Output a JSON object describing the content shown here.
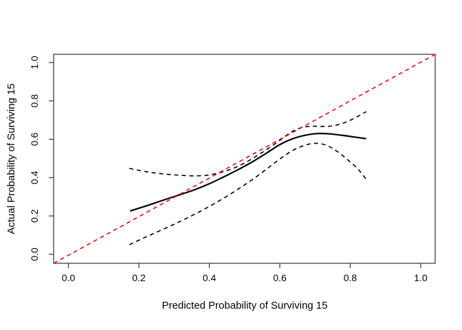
{
  "figure": {
    "background": "#ffffff",
    "box_color": "#333333",
    "text_color": "#000000"
  },
  "chart_data": {
    "type": "line",
    "title": "",
    "xlabel": "Predicted Probability of Surviving 15",
    "ylabel": "Actual Probability of Surviving 15",
    "xlim": [
      -0.042,
      1.041
    ],
    "ylim": [
      -0.047,
      1.043
    ],
    "grid": false,
    "legend": "none",
    "xticks": {
      "values": [
        0,
        0.2,
        0.4,
        0.6,
        0.8,
        1.0
      ],
      "labels": [
        "0.0",
        "0.2",
        "0.4",
        "0.6",
        "0.8",
        "1.0"
      ]
    },
    "yticks": {
      "values": [
        0,
        0.2,
        0.4,
        0.6,
        0.8,
        1.0
      ],
      "labels": [
        "0.0",
        "0.2",
        "0.4",
        "0.6",
        "0.8",
        "1.0"
      ]
    },
    "series": [
      {
        "name": "ideal-line",
        "style": "dashed",
        "color": "#ff0000",
        "width": 1.6,
        "smooth": false,
        "points": [
          [
            -0.042,
            -0.047
          ],
          [
            1.041,
            1.043
          ]
        ]
      },
      {
        "name": "calibration-curve",
        "style": "solid",
        "color": "#000000",
        "width": 2.2,
        "smooth": true,
        "points": [
          [
            0.175,
            0.226
          ],
          [
            0.22,
            0.252
          ],
          [
            0.27,
            0.283
          ],
          [
            0.32,
            0.313
          ],
          [
            0.36,
            0.338
          ],
          [
            0.4,
            0.368
          ],
          [
            0.44,
            0.403
          ],
          [
            0.48,
            0.44
          ],
          [
            0.52,
            0.48
          ],
          [
            0.56,
            0.525
          ],
          [
            0.6,
            0.572
          ],
          [
            0.64,
            0.605
          ],
          [
            0.68,
            0.624
          ],
          [
            0.71,
            0.63
          ],
          [
            0.74,
            0.628
          ],
          [
            0.78,
            0.62
          ],
          [
            0.81,
            0.612
          ],
          [
            0.845,
            0.603
          ]
        ]
      },
      {
        "name": "upper-confidence-band",
        "style": "dashed",
        "color": "#000000",
        "width": 1.6,
        "smooth": true,
        "points": [
          [
            0.173,
            0.448
          ],
          [
            0.22,
            0.431
          ],
          [
            0.27,
            0.419
          ],
          [
            0.32,
            0.412
          ],
          [
            0.36,
            0.409
          ],
          [
            0.4,
            0.414
          ],
          [
            0.44,
            0.431
          ],
          [
            0.48,
            0.458
          ],
          [
            0.52,
            0.497
          ],
          [
            0.56,
            0.543
          ],
          [
            0.6,
            0.594
          ],
          [
            0.63,
            0.635
          ],
          [
            0.66,
            0.66
          ],
          [
            0.69,
            0.668
          ],
          [
            0.72,
            0.667
          ],
          [
            0.75,
            0.67
          ],
          [
            0.78,
            0.684
          ],
          [
            0.81,
            0.708
          ],
          [
            0.845,
            0.744
          ]
        ]
      },
      {
        "name": "lower-confidence-band",
        "style": "dashed",
        "color": "#000000",
        "width": 1.6,
        "smooth": true,
        "points": [
          [
            0.173,
            0.05
          ],
          [
            0.21,
            0.082
          ],
          [
            0.25,
            0.115
          ],
          [
            0.29,
            0.148
          ],
          [
            0.33,
            0.183
          ],
          [
            0.37,
            0.22
          ],
          [
            0.41,
            0.26
          ],
          [
            0.45,
            0.303
          ],
          [
            0.49,
            0.35
          ],
          [
            0.53,
            0.4
          ],
          [
            0.57,
            0.455
          ],
          [
            0.61,
            0.51
          ],
          [
            0.64,
            0.545
          ],
          [
            0.67,
            0.568
          ],
          [
            0.7,
            0.579
          ],
          [
            0.73,
            0.57
          ],
          [
            0.76,
            0.54
          ],
          [
            0.79,
            0.497
          ],
          [
            0.82,
            0.448
          ],
          [
            0.845,
            0.392
          ]
        ]
      }
    ]
  }
}
